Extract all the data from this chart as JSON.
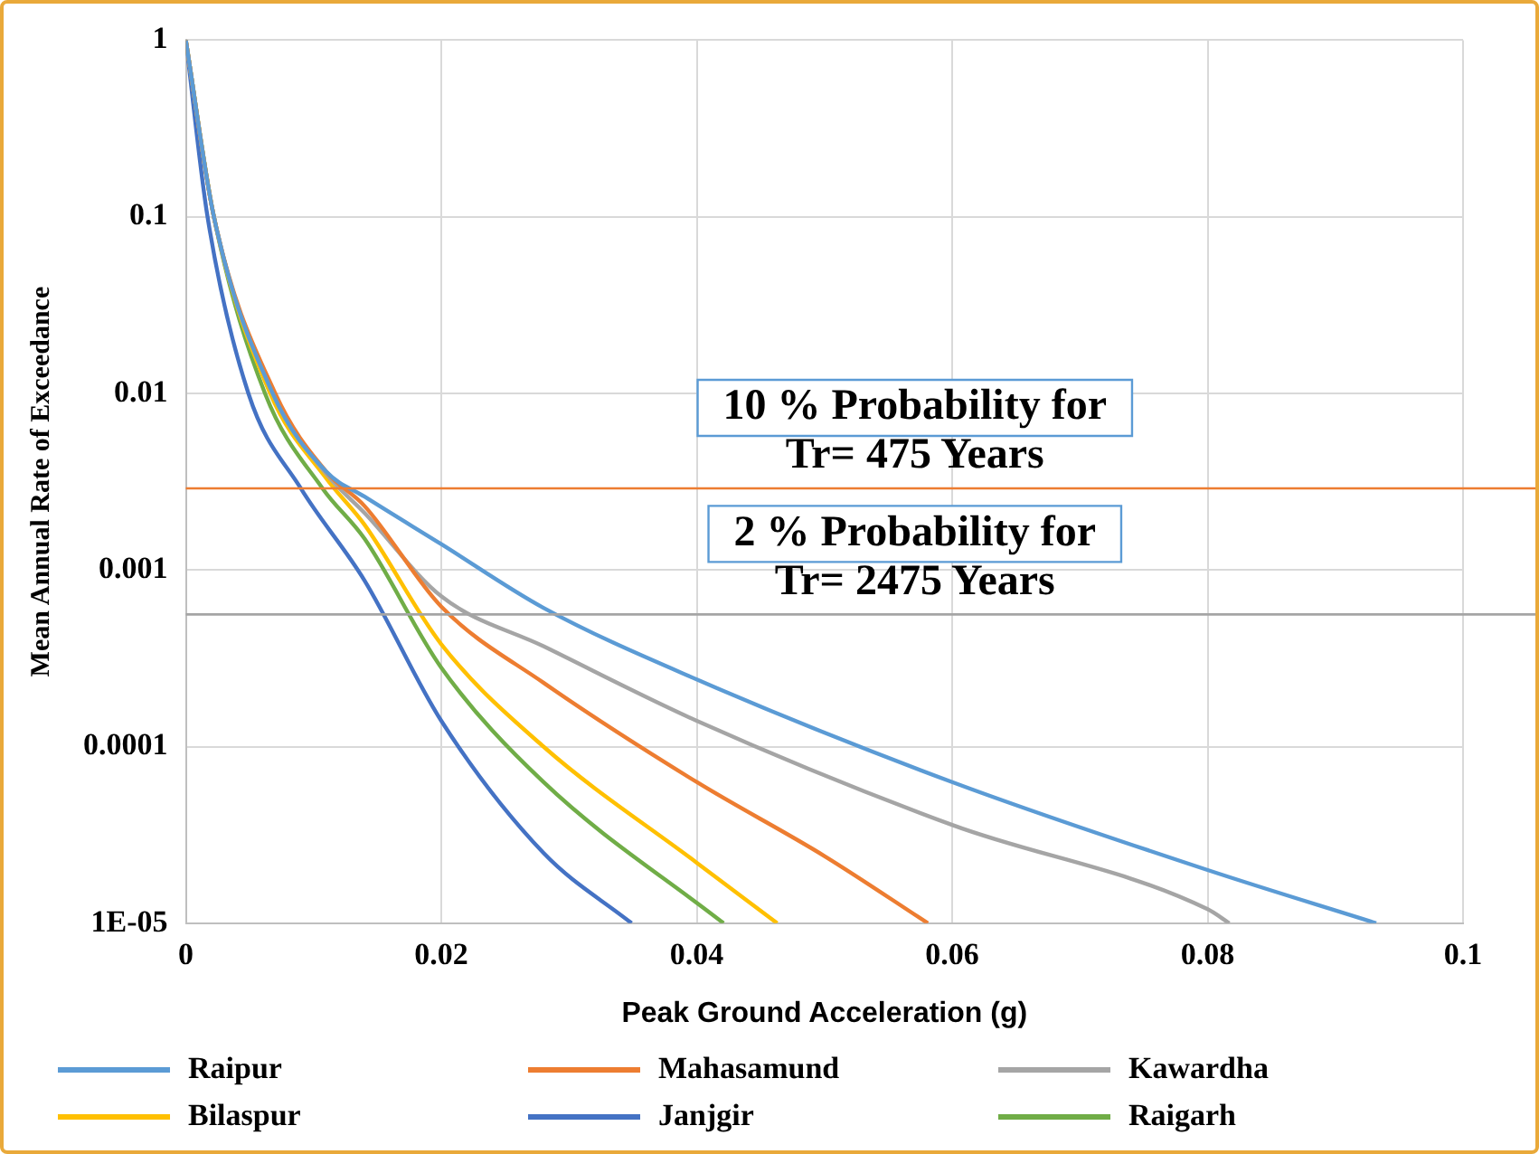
{
  "chart_data": {
    "type": "line",
    "xlabel": "Peak Ground Acceleration (g)",
    "ylabel": "Mean Annual Rate of Exceedance",
    "log": "y",
    "grid": true,
    "legend": "bottom",
    "marker": "none",
    "line_style": "solid",
    "xlim": [
      0,
      0.1
    ],
    "xticks": [
      0,
      0.02,
      0.04,
      0.06,
      0.08,
      0.1
    ],
    "ylim": [
      1e-05,
      1
    ],
    "yticks": [
      1,
      0.1,
      0.01,
      0.001,
      0.0001,
      {
        "value": 1e-05,
        "label": "1E-05"
      }
    ],
    "series": [
      {
        "name": "Raipur",
        "color": "#5b9bd5",
        "x": [
          0,
          0.0022,
          0.0068,
          0.011,
          0.014,
          0.02,
          0.028,
          0.04,
          0.06,
          0.08,
          0.0932
        ],
        "values": [
          1,
          0.1,
          0.01,
          0.0036,
          0.0026,
          0.0014,
          0.00061,
          0.00024,
          6.3e-05,
          2e-05,
          1e-05
        ]
      },
      {
        "name": "Mahasamund",
        "color": "#ed7d31",
        "x": [
          0,
          0.0022,
          0.007,
          0.011,
          0.014,
          0.02,
          0.028,
          0.04,
          0.05,
          0.0581
        ],
        "values": [
          1,
          0.1,
          0.01,
          0.0036,
          0.0023,
          0.00062,
          0.00023,
          6.3e-05,
          2.4e-05,
          1e-05
        ]
      },
      {
        "name": "Kawardha",
        "color": "#a5a5a5",
        "x": [
          0,
          0.0022,
          0.0068,
          0.011,
          0.014,
          0.02,
          0.028,
          0.04,
          0.06,
          0.08,
          0.0817
        ],
        "values": [
          1,
          0.1,
          0.01,
          0.0035,
          0.0021,
          0.00071,
          0.00037,
          0.00014,
          3.6e-05,
          1.2e-05,
          1e-05
        ]
      },
      {
        "name": "Bilaspur",
        "color": "#ffc000",
        "x": [
          0,
          0.0022,
          0.0066,
          0.011,
          0.014,
          0.02,
          0.028,
          0.04,
          0.0463
        ],
        "values": [
          1,
          0.1,
          0.01,
          0.0033,
          0.0018,
          0.00038,
          0.0001,
          2.2e-05,
          1e-05
        ]
      },
      {
        "name": "Janjgir",
        "color": "#4472c4",
        "x": [
          0,
          0.0017,
          0.0049,
          0.009,
          0.014,
          0.02,
          0.028,
          0.0349
        ],
        "values": [
          1,
          0.1,
          0.01,
          0.0029,
          0.00087,
          0.00014,
          2.5e-05,
          1e-05
        ]
      },
      {
        "name": "Raigarh",
        "color": "#70ad47",
        "x": [
          0,
          0.0022,
          0.0062,
          0.0107,
          0.014,
          0.02,
          0.028,
          0.0421
        ],
        "values": [
          1,
          0.1,
          0.01,
          0.0029,
          0.0015,
          0.00028,
          6.3e-05,
          1e-05
        ]
      }
    ],
    "annotations": [
      "10 % Probability for\nTr= 475 Years",
      "2 % Probability for\nTr= 2475 Years"
    ],
    "ref_lines": [
      {
        "axis": "y",
        "value": 0.0029,
        "color": "#ed7d31"
      },
      {
        "axis": "y",
        "value": 0.00056,
        "color": "#a5a5a5"
      }
    ]
  }
}
